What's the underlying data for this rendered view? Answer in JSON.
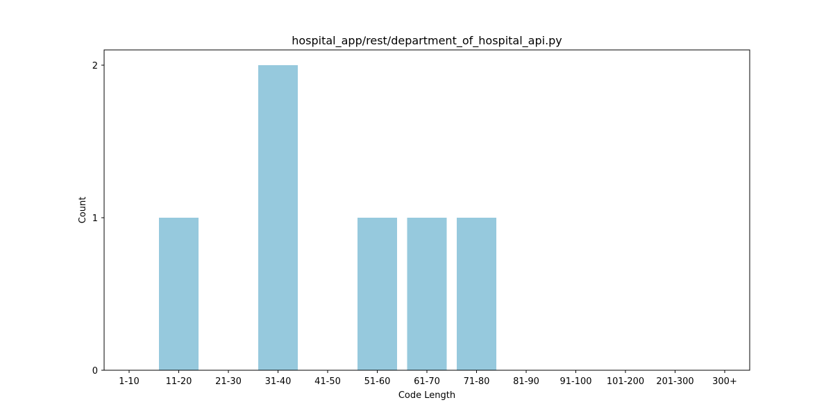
{
  "chart_data": {
    "type": "bar",
    "title": "hospital_app/rest/department_of_hospital_api.py",
    "xlabel": "Code Length",
    "ylabel": "Count",
    "categories": [
      "1-10",
      "11-20",
      "21-30",
      "31-40",
      "41-50",
      "51-60",
      "61-70",
      "71-80",
      "81-90",
      "91-100",
      "101-200",
      "201-300",
      "300+"
    ],
    "values": [
      0,
      1,
      0,
      2,
      0,
      1,
      1,
      1,
      0,
      0,
      0,
      0,
      0
    ],
    "ylim": [
      0,
      2.1
    ],
    "yticks": [
      0,
      1,
      2
    ],
    "bar_color": "#96c9dd",
    "grid": false,
    "legend": "none"
  }
}
